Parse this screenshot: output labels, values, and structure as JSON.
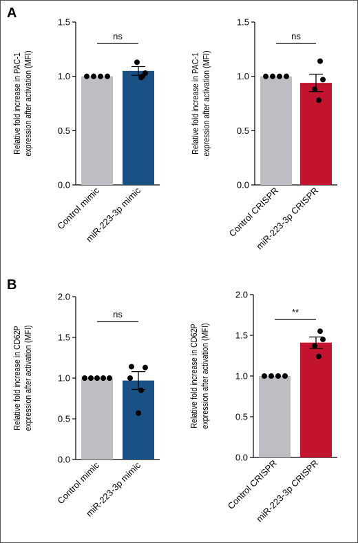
{
  "panels": [
    {
      "letter": "A"
    },
    {
      "letter": "B"
    }
  ],
  "chart_data": [
    {
      "type": "bar",
      "ylabel_line1": "Relative fold increase in PAC-1",
      "ylabel_line2": "expression after activation (MFI)",
      "ylim": [
        0,
        1.5
      ],
      "yticks": [
        "0.0",
        "0.5",
        "1.0",
        "1.5"
      ],
      "categories": [
        "Control mimic",
        "miR-223-3p mimic"
      ],
      "values": [
        1.0,
        1.05
      ],
      "errors": [
        0,
        0.04
      ],
      "points": [
        [
          1.0,
          1.0,
          1.0,
          1.0
        ],
        [
          1.0,
          1.03,
          1.13,
          0.99
        ]
      ],
      "colors": [
        "#bdbdc3",
        "#1a5185"
      ],
      "significance": "ns"
    },
    {
      "type": "bar",
      "ylabel_line1": "Relative fold increase in PAC-1",
      "ylabel_line2": "expression after activation (MFI)",
      "ylim": [
        0,
        1.5
      ],
      "yticks": [
        "0.0",
        "0.5",
        "1.0",
        "1.5"
      ],
      "categories": [
        "Control CRISPR",
        "miR-223-3p CRISPR"
      ],
      "values": [
        1.0,
        0.94
      ],
      "errors": [
        0,
        0.08
      ],
      "points": [
        [
          1.0,
          1.0,
          1.0,
          1.0
        ],
        [
          1.14,
          0.97,
          0.88,
          0.78
        ]
      ],
      "colors": [
        "#bdbdc3",
        "#c3142f"
      ],
      "significance": "ns"
    },
    {
      "type": "bar",
      "ylabel_line1": "Relative fold increase in CD62P",
      "ylabel_line2": "expression after activation (MFI)",
      "ylim": [
        0,
        2.0
      ],
      "yticks": [
        "0.0",
        "0.5",
        "1.0",
        "1.5",
        "2.0"
      ],
      "categories": [
        "Control mimic",
        "miR-223-3p mimic"
      ],
      "values": [
        1.0,
        0.97
      ],
      "errors": [
        0,
        0.11
      ],
      "points": [
        [
          1.0,
          1.0,
          1.0,
          1.0,
          1.0
        ],
        [
          1.14,
          1.13,
          1.0,
          0.85,
          0.57
        ]
      ],
      "colors": [
        "#bdbdc3",
        "#1a5185"
      ],
      "significance": "ns"
    },
    {
      "type": "bar",
      "ylabel_line1": "Relative fold increase in CD62P",
      "ylabel_line2": "expression after activation (MFI)",
      "ylim": [
        0,
        2.0
      ],
      "yticks": [
        "0.0",
        "0.5",
        "1.0",
        "1.5",
        "2.0"
      ],
      "categories": [
        "Control CRISPR",
        "miR-223-3p CRISPR"
      ],
      "values": [
        1.0,
        1.41
      ],
      "errors": [
        0,
        0.07
      ],
      "points": [
        [
          1.0,
          1.0,
          1.0,
          1.0
        ],
        [
          1.55,
          1.45,
          1.37,
          1.24
        ]
      ],
      "colors": [
        "#bdbdc3",
        "#c3142f"
      ],
      "significance": "**"
    }
  ]
}
